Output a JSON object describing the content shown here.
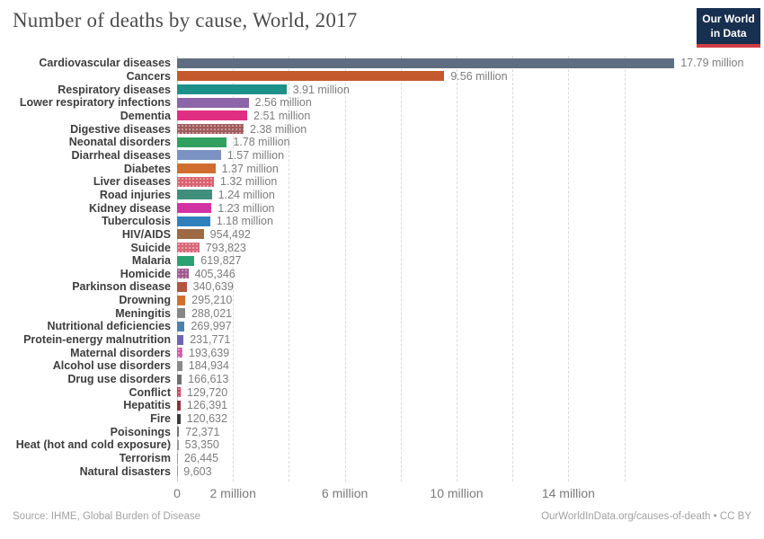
{
  "header": {
    "title": "Number of deaths by cause, World, 2017",
    "logo": {
      "line1": "Our World",
      "line2": "in Data"
    }
  },
  "chart_data": {
    "type": "bar",
    "orientation": "horizontal",
    "title": "Number of deaths by cause, World, 2017",
    "unit": "deaths",
    "xlim_millions": [
      0,
      17.79
    ],
    "grid": true,
    "gridlines_millions": [
      2,
      4,
      6,
      8,
      10,
      12,
      14,
      16
    ],
    "x_ticks": [
      {
        "value_millions": 0,
        "label": "0"
      },
      {
        "value_millions": 2,
        "label": "2 million"
      },
      {
        "value_millions": 6,
        "label": "6 million"
      },
      {
        "value_millions": 10,
        "label": "10 million"
      },
      {
        "value_millions": 14,
        "label": "14 million"
      }
    ],
    "bars": [
      {
        "label": "Cardiovascular diseases",
        "value": 17790000,
        "display": "17.79 million",
        "color": "#5e6e80",
        "patterned": false
      },
      {
        "label": "Cancers",
        "value": 9560000,
        "display": "9.56 million",
        "color": "#c4592d",
        "patterned": false
      },
      {
        "label": "Respiratory diseases",
        "value": 3910000,
        "display": "3.91 million",
        "color": "#1d9188",
        "patterned": false
      },
      {
        "label": "Lower respiratory infections",
        "value": 2560000,
        "display": "2.56 million",
        "color": "#8d65a9",
        "patterned": false
      },
      {
        "label": "Dementia",
        "value": 2510000,
        "display": "2.51 million",
        "color": "#e02f82",
        "patterned": false
      },
      {
        "label": "Digestive diseases",
        "value": 2380000,
        "display": "2.38 million",
        "color": "#a25b5e",
        "patterned": true
      },
      {
        "label": "Neonatal disorders",
        "value": 1780000,
        "display": "1.78 million",
        "color": "#32a05e",
        "patterned": false
      },
      {
        "label": "Diarrheal diseases",
        "value": 1570000,
        "display": "1.57 million",
        "color": "#7b93c2",
        "patterned": false
      },
      {
        "label": "Diabetes",
        "value": 1370000,
        "display": "1.37 million",
        "color": "#cf6e2e",
        "patterned": false
      },
      {
        "label": "Liver diseases",
        "value": 1320000,
        "display": "1.32 million",
        "color": "#d8636e",
        "patterned": true
      },
      {
        "label": "Road injuries",
        "value": 1240000,
        "display": "1.24 million",
        "color": "#3f8e7e",
        "patterned": false
      },
      {
        "label": "Kidney disease",
        "value": 1230000,
        "display": "1.23 million",
        "color": "#d133a4",
        "patterned": false
      },
      {
        "label": "Tuberculosis",
        "value": 1180000,
        "display": "1.18 million",
        "color": "#3080bb",
        "patterned": false
      },
      {
        "label": "HIV/AIDS",
        "value": 954492,
        "display": "954,492",
        "color": "#9c6b45",
        "patterned": false
      },
      {
        "label": "Suicide",
        "value": 793823,
        "display": "793,823",
        "color": "#d96779",
        "patterned": true
      },
      {
        "label": "Malaria",
        "value": 619827,
        "display": "619,827",
        "color": "#2ba172",
        "patterned": false
      },
      {
        "label": "Homicide",
        "value": 405346,
        "display": "405,346",
        "color": "#a0588f",
        "patterned": true
      },
      {
        "label": "Parkinson disease",
        "value": 340639,
        "display": "340,639",
        "color": "#b35442",
        "patterned": false
      },
      {
        "label": "Drowning",
        "value": 295210,
        "display": "295,210",
        "color": "#d1702e",
        "patterned": false
      },
      {
        "label": "Meningitis",
        "value": 288021,
        "display": "288,021",
        "color": "#878787",
        "patterned": false
      },
      {
        "label": "Nutritional deficiencies",
        "value": 269997,
        "display": "269,997",
        "color": "#4a82ab",
        "patterned": false
      },
      {
        "label": "Protein-energy malnutrition",
        "value": 231771,
        "display": "231,771",
        "color": "#6e64af",
        "patterned": false
      },
      {
        "label": "Maternal disorders",
        "value": 193639,
        "display": "193,639",
        "color": "#cc5ea8",
        "patterned": true
      },
      {
        "label": "Alcohol use disorders",
        "value": 184934,
        "display": "184,934",
        "color": "#8a8a8a",
        "patterned": false
      },
      {
        "label": "Drug use disorders",
        "value": 166613,
        "display": "166,613",
        "color": "#6f6f6f",
        "patterned": false
      },
      {
        "label": "Conflict",
        "value": 129720,
        "display": "129,720",
        "color": "#d03a5f",
        "patterned": true
      },
      {
        "label": "Hepatitis",
        "value": 126391,
        "display": "126,391",
        "color": "#8d313a",
        "patterned": false
      },
      {
        "label": "Fire",
        "value": 120632,
        "display": "120,632",
        "color": "#3b3b3b",
        "patterned": false
      },
      {
        "label": "Poisonings",
        "value": 72371,
        "display": "72,371",
        "color": "#757575",
        "patterned": false
      },
      {
        "label": "Heat (hot and cold exposure)",
        "value": 53350,
        "display": "53,350",
        "color": "#9a9a9a",
        "patterned": false
      },
      {
        "label": "Terrorism",
        "value": 26445,
        "display": "26,445",
        "color": "#9a9a9a",
        "patterned": false
      },
      {
        "label": "Natural disasters",
        "value": 9603,
        "display": "9,603",
        "color": "#9a9a9a",
        "patterned": false
      }
    ]
  },
  "footer": {
    "source": "Source: IHME, Global Burden of Disease",
    "link": "OurWorldInData.org/causes-of-death • CC BY"
  }
}
